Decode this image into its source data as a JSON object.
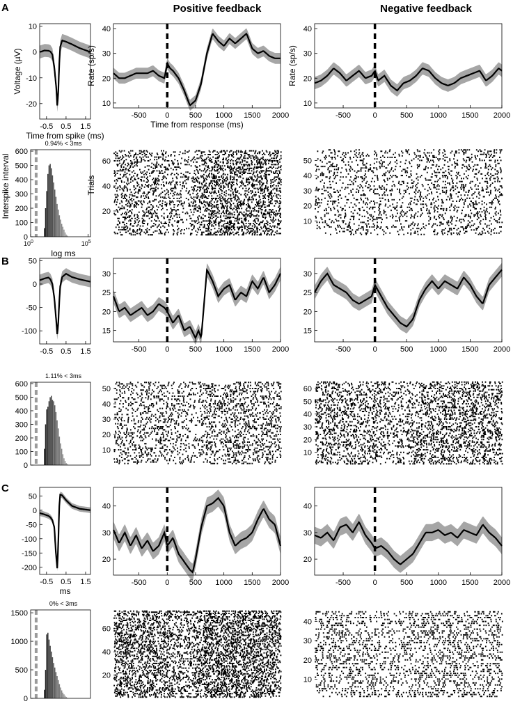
{
  "figure": {
    "column_headers": [
      "Positive feedback",
      "Negative feedback"
    ],
    "panel_labels": [
      "A",
      "B",
      "C"
    ]
  },
  "colors": {
    "band": "#a6a6a6",
    "line": "#000000",
    "isi_dash": "#9b9b9b"
  },
  "chart_data": [
    {
      "id": "A-waveform",
      "type": "line",
      "panel": "A",
      "xlabel": "Time from spike (ms)",
      "ylabel": "Voltage (µV)",
      "xlim": [
        -0.85,
        1.75
      ],
      "ylim": [
        -26,
        11
      ],
      "xticks": [
        -0.5,
        0.5,
        1.5
      ],
      "xticklabels": [
        "-0.5",
        "0.5",
        "1.5"
      ],
      "yticks": [
        -20,
        -10,
        0,
        10
      ],
      "yticklabels": [
        "-20",
        "-10",
        "0",
        "10"
      ],
      "x": [
        -0.85,
        -0.6,
        -0.4,
        -0.3,
        -0.2,
        -0.1,
        0.0,
        0.05,
        0.1,
        0.15,
        0.2,
        0.3,
        0.5,
        0.8,
        1.2,
        1.75
      ],
      "y": [
        0,
        0.6,
        0.5,
        0.2,
        -1,
        -6,
        -14,
        -21,
        -16,
        -5,
        2,
        4.5,
        4,
        3,
        1.5,
        0
      ],
      "band": 2.5
    },
    {
      "id": "A-pos-rate",
      "type": "line",
      "panel": "A",
      "xlabel": "Time from response (ms)",
      "ylabel": "Rate (sp/s)",
      "xlim": [
        -950,
        2000
      ],
      "ylim": [
        8,
        42
      ],
      "xticks": [
        -500,
        0,
        500,
        1000,
        1500,
        2000
      ],
      "xticklabels": [
        "-500",
        "0",
        "500",
        "1000",
        "1500",
        "2000"
      ],
      "yticks": [
        10,
        20,
        30,
        40
      ],
      "yticklabels": [
        "10",
        "20",
        "30",
        "40"
      ],
      "event_line_x": 0,
      "x": [
        -950,
        -850,
        -750,
        -650,
        -550,
        -450,
        -350,
        -250,
        -150,
        -50,
        0,
        50,
        100,
        200,
        300,
        400,
        500,
        600,
        700,
        800,
        900,
        1000,
        1100,
        1200,
        1300,
        1400,
        1500,
        1600,
        1700,
        1800,
        1900,
        2000
      ],
      "y": [
        22,
        20,
        20,
        21,
        22,
        22,
        22,
        23,
        21,
        20,
        26,
        24,
        23,
        20,
        15,
        9,
        11,
        18,
        30,
        38,
        35,
        33,
        36,
        34,
        36,
        38,
        32,
        30,
        31,
        29,
        28,
        28
      ],
      "band": 2.2
    },
    {
      "id": "A-neg-rate",
      "type": "line",
      "panel": "A",
      "xlabel": "",
      "ylabel": "Rate (sp/s)",
      "xlim": [
        -950,
        2000
      ],
      "ylim": [
        8,
        42
      ],
      "xticks": [
        -500,
        0,
        500,
        1000,
        1500,
        2000
      ],
      "xticklabels": [
        "-500",
        "0",
        "500",
        "1000",
        "1500",
        "2000"
      ],
      "yticks": [
        10,
        20,
        30,
        40
      ],
      "yticklabels": [
        "10",
        "20",
        "30",
        "40"
      ],
      "event_line_x": 0,
      "x": [
        -950,
        -850,
        -750,
        -650,
        -550,
        -450,
        -350,
        -250,
        -150,
        -50,
        0,
        50,
        150,
        250,
        350,
        450,
        550,
        650,
        750,
        850,
        950,
        1050,
        1150,
        1250,
        1350,
        1450,
        1550,
        1650,
        1750,
        1850,
        1950,
        2000
      ],
      "y": [
        18,
        19,
        21,
        24,
        22,
        19,
        21,
        23,
        20,
        21,
        23,
        19,
        21,
        17,
        15,
        18,
        19,
        21,
        24,
        23,
        20,
        18,
        17,
        18,
        20,
        21,
        22,
        23,
        19,
        21,
        24,
        23
      ],
      "band": 2.5
    },
    {
      "id": "A-isi",
      "type": "bar",
      "panel": "A",
      "title": "0.94% < 3ms",
      "xlabel": "log ms",
      "ylabel": "Interspike interval",
      "xlim": [
        0,
        5.2
      ],
      "ylim": [
        0,
        610
      ],
      "xscale": "log10",
      "yticks": [
        0,
        100,
        200,
        300,
        400,
        500,
        600
      ],
      "yticklabels": [
        "0",
        "100",
        "200",
        "300",
        "400",
        "500",
        "600"
      ],
      "xticks_pow": [
        0,
        5
      ],
      "bin_centers": [
        1.2,
        1.3,
        1.4,
        1.5,
        1.6,
        1.7,
        1.8,
        1.9,
        2.0,
        2.1,
        2.2,
        2.3,
        2.4,
        2.5,
        2.6,
        2.7,
        2.8,
        2.9,
        3.0,
        3.1,
        3.2
      ],
      "values": [
        60,
        200,
        320,
        440,
        500,
        510,
        480,
        430,
        380,
        330,
        280,
        230,
        190,
        150,
        120,
        90,
        70,
        50,
        30,
        15,
        8
      ],
      "dash_x": 0.48
    },
    {
      "id": "A-pos-raster",
      "type": "scatter",
      "panel": "A",
      "ylabel": "Trials",
      "xlim": [
        -950,
        2000
      ],
      "ylim": [
        0,
        70
      ],
      "yticks": [
        20,
        40,
        60
      ],
      "yticklabels": [
        "20",
        "40",
        "60"
      ],
      "trials": 68,
      "density_x": [
        -950,
        -500,
        0,
        300,
        600,
        1000,
        1500,
        2000
      ],
      "density": [
        0.22,
        0.22,
        0.2,
        0.12,
        0.3,
        0.34,
        0.33,
        0.3
      ]
    },
    {
      "id": "A-neg-raster",
      "type": "scatter",
      "panel": "A",
      "xlim": [
        -950,
        2000
      ],
      "ylim": [
        0,
        58
      ],
      "yticks": [
        10,
        20,
        30,
        40,
        50
      ],
      "yticklabels": [
        "10",
        "20",
        "30",
        "40",
        "50"
      ],
      "trials": 57,
      "density_x": [
        -950,
        0,
        500,
        1000,
        2000
      ],
      "density": [
        0.2,
        0.2,
        0.16,
        0.2,
        0.22
      ]
    },
    {
      "id": "B-waveform",
      "type": "line",
      "panel": "B",
      "xlim": [
        -0.85,
        1.75
      ],
      "ylim": [
        -128,
        55
      ],
      "xticks": [
        -0.5,
        0.5,
        1.5
      ],
      "xticklabels": [
        "-0.5",
        "0.5",
        "1.5"
      ],
      "yticks": [
        -100,
        -50,
        0,
        50
      ],
      "yticklabels": [
        "-100",
        "-50",
        "0",
        "50"
      ],
      "x": [
        -0.85,
        -0.6,
        -0.4,
        -0.3,
        -0.2,
        -0.1,
        0.0,
        0.05,
        0.1,
        0.15,
        0.2,
        0.3,
        0.5,
        0.8,
        1.2,
        1.75
      ],
      "y": [
        8,
        12,
        14,
        10,
        0,
        -30,
        -80,
        -108,
        -85,
        -40,
        -5,
        15,
        22,
        15,
        10,
        5
      ],
      "band": 12
    },
    {
      "id": "B-pos-rate",
      "type": "line",
      "panel": "B",
      "xlim": [
        -950,
        2000
      ],
      "ylim": [
        12,
        34
      ],
      "xticks": [
        -500,
        0,
        500,
        1000,
        1500,
        2000
      ],
      "xticklabels": [
        "-500",
        "0",
        "500",
        "1000",
        "1500",
        "2000"
      ],
      "yticks": [
        15,
        20,
        25,
        30
      ],
      "yticklabels": [
        "15",
        "20",
        "25",
        "30"
      ],
      "event_line_x": 0,
      "x": [
        -950,
        -850,
        -750,
        -650,
        -550,
        -450,
        -350,
        -250,
        -150,
        -50,
        0,
        100,
        200,
        300,
        400,
        500,
        550,
        600,
        700,
        800,
        900,
        1000,
        1100,
        1200,
        1300,
        1400,
        1500,
        1600,
        1700,
        1800,
        1900,
        2000
      ],
      "y": [
        24,
        20,
        21,
        19,
        20,
        21,
        19,
        20,
        22,
        21,
        20,
        17,
        19,
        15,
        16,
        13,
        15,
        13,
        31,
        28,
        24,
        26,
        27,
        23,
        25,
        24,
        28,
        26,
        29,
        25,
        27,
        30
      ],
      "band": 1.8
    },
    {
      "id": "B-neg-rate",
      "type": "line",
      "panel": "B",
      "xlim": [
        -950,
        2000
      ],
      "ylim": [
        12,
        34
      ],
      "xticks": [
        -500,
        0,
        500,
        1000,
        1500,
        2000
      ],
      "xticklabels": [
        "-500",
        "0",
        "500",
        "1000",
        "1500",
        "2000"
      ],
      "yticks": [
        15,
        20,
        25,
        30
      ],
      "yticklabels": [
        "15",
        "20",
        "25",
        "30"
      ],
      "event_line_x": 0,
      "x": [
        -950,
        -850,
        -750,
        -650,
        -550,
        -450,
        -350,
        -250,
        -150,
        -50,
        0,
        100,
        200,
        300,
        400,
        500,
        600,
        700,
        800,
        900,
        1000,
        1100,
        1200,
        1300,
        1400,
        1500,
        1600,
        1700,
        1800,
        1900,
        2000
      ],
      "y": [
        25,
        28,
        30,
        27,
        26,
        25,
        23,
        22,
        23,
        24,
        27,
        24,
        21,
        19,
        17,
        16,
        18,
        23,
        26,
        28,
        26,
        28,
        27,
        26,
        29,
        27,
        24,
        22,
        27,
        29,
        31
      ],
      "band": 1.8
    },
    {
      "id": "B-isi",
      "type": "bar",
      "panel": "B",
      "title": "1.11% < 3ms",
      "xlim": [
        0,
        5.2
      ],
      "ylim": [
        0,
        610
      ],
      "xscale": "log10",
      "yticks": [
        0,
        100,
        200,
        300,
        400,
        500,
        600
      ],
      "yticklabels": [
        "0",
        "100",
        "200",
        "300",
        "400",
        "500",
        "600"
      ],
      "bin_centers": [
        1.2,
        1.3,
        1.4,
        1.5,
        1.6,
        1.7,
        1.8,
        1.9,
        2.0,
        2.1,
        2.2,
        2.3,
        2.4,
        2.5,
        2.6,
        2.7,
        2.8,
        2.9,
        3.0,
        3.1,
        3.2
      ],
      "values": [
        120,
        300,
        410,
        430,
        470,
        500,
        510,
        480,
        470,
        440,
        390,
        330,
        270,
        210,
        160,
        120,
        80,
        50,
        30,
        15,
        8
      ],
      "dash_x": 0.48
    },
    {
      "id": "B-pos-raster",
      "type": "scatter",
      "panel": "B",
      "xlim": [
        -950,
        2000
      ],
      "ylim": [
        0,
        55
      ],
      "yticks": [
        10,
        20,
        30,
        40,
        50
      ],
      "yticklabels": [
        "10",
        "20",
        "30",
        "40",
        "50"
      ],
      "trials": 54,
      "density_x": [
        -950,
        0,
        500,
        700,
        1000,
        2000
      ],
      "density": [
        0.22,
        0.22,
        0.14,
        0.26,
        0.26,
        0.28
      ]
    },
    {
      "id": "B-neg-raster",
      "type": "scatter",
      "panel": "B",
      "xlim": [
        -950,
        2000
      ],
      "ylim": [
        0,
        66
      ],
      "yticks": [
        10,
        20,
        30,
        40,
        50,
        60
      ],
      "yticklabels": [
        "10",
        "20",
        "30",
        "40",
        "50",
        "60"
      ],
      "trials": 65,
      "density_x": [
        -950,
        0,
        400,
        700,
        1000,
        2000
      ],
      "density": [
        0.3,
        0.26,
        0.18,
        0.28,
        0.3,
        0.3
      ]
    },
    {
      "id": "C-waveform",
      "type": "line",
      "panel": "C",
      "xlabel": "ms",
      "xlim": [
        -0.85,
        1.75
      ],
      "ylim": [
        -225,
        80
      ],
      "xticks": [
        -0.5,
        0.5,
        1.5
      ],
      "xticklabels": [
        "-0.5",
        "0.5",
        "1.5"
      ],
      "yticks": [
        -200,
        -150,
        -100,
        -50,
        0,
        50
      ],
      "yticklabels": [
        "-200",
        "-150",
        "-100",
        "-50",
        "0",
        "50"
      ],
      "x": [
        -0.85,
        -0.6,
        -0.4,
        -0.3,
        -0.2,
        -0.1,
        -0.02,
        0.05,
        0.1,
        0.15,
        0.2,
        0.3,
        0.5,
        0.8,
        1.2,
        1.75
      ],
      "y": [
        -10,
        -15,
        -20,
        -25,
        -35,
        -60,
        -150,
        -205,
        -120,
        10,
        55,
        52,
        35,
        15,
        5,
        0
      ],
      "band": 10
    },
    {
      "id": "C-pos-rate",
      "type": "line",
      "panel": "C",
      "xlim": [
        -950,
        2000
      ],
      "ylim": [
        14,
        47
      ],
      "xticks": [
        -500,
        0,
        500,
        1000,
        1500,
        2000
      ],
      "xticklabels": [
        "-500",
        "0",
        "500",
        "1000",
        "1500",
        "2000"
      ],
      "yticks": [
        20,
        30,
        40
      ],
      "yticklabels": [
        "20",
        "30",
        "40"
      ],
      "event_line_x": 0,
      "x": [
        -950,
        -850,
        -750,
        -650,
        -550,
        -450,
        -350,
        -250,
        -150,
        -50,
        0,
        100,
        200,
        300,
        400,
        450,
        500,
        600,
        700,
        800,
        900,
        1000,
        1100,
        1200,
        1300,
        1400,
        1500,
        1600,
        1700,
        1800,
        1900,
        2000
      ],
      "y": [
        31,
        26,
        30,
        25,
        29,
        24,
        27,
        23,
        25,
        30,
        25,
        28,
        22,
        19,
        16,
        15,
        20,
        32,
        40,
        41,
        43,
        40,
        30,
        25,
        27,
        28,
        30,
        35,
        39,
        35,
        33,
        25
      ],
      "band": 3.2
    },
    {
      "id": "C-neg-rate",
      "type": "line",
      "panel": "C",
      "xlim": [
        -950,
        2000
      ],
      "ylim": [
        14,
        47
      ],
      "xticks": [
        -500,
        0,
        500,
        1000,
        1500,
        2000
      ],
      "xticklabels": [
        "-500",
        "0",
        "500",
        "1000",
        "1500",
        "2000"
      ],
      "yticks": [
        20,
        30,
        40
      ],
      "yticklabels": [
        "20",
        "30",
        "40"
      ],
      "event_line_x": 0,
      "x": [
        -950,
        -850,
        -750,
        -650,
        -550,
        -450,
        -350,
        -250,
        -150,
        -50,
        0,
        100,
        200,
        300,
        400,
        500,
        600,
        700,
        800,
        900,
        1000,
        1100,
        1200,
        1300,
        1400,
        1500,
        1600,
        1700,
        1800,
        1900,
        2000
      ],
      "y": [
        29,
        28,
        30,
        27,
        32,
        33,
        30,
        34,
        29,
        26,
        24,
        25,
        23,
        20,
        18,
        20,
        22,
        26,
        30,
        30,
        31,
        29,
        30,
        28,
        31,
        30,
        29,
        33,
        30,
        28,
        25
      ],
      "band": 3.2
    },
    {
      "id": "C-isi",
      "type": "bar",
      "panel": "C",
      "title": "0% < 3ms",
      "xlim": [
        0,
        5.2
      ],
      "ylim": [
        0,
        1550
      ],
      "xscale": "log10",
      "yticks": [
        0,
        500,
        1000,
        1500
      ],
      "yticklabels": [
        "0",
        "500",
        "1000",
        "1500"
      ],
      "bin_centers": [
        1.2,
        1.3,
        1.4,
        1.5,
        1.6,
        1.7,
        1.8,
        1.9,
        2.0,
        2.1,
        2.2,
        2.3,
        2.4,
        2.5,
        2.6,
        2.7,
        2.8,
        2.9,
        3.0,
        3.1,
        3.2
      ],
      "values": [
        150,
        500,
        1120,
        1150,
        1030,
        920,
        820,
        720,
        620,
        540,
        460,
        390,
        320,
        250,
        190,
        140,
        100,
        70,
        45,
        25,
        10
      ],
      "dash_x": 0.48
    },
    {
      "id": "C-pos-raster",
      "type": "scatter",
      "panel": "C",
      "xlim": [
        -950,
        2000
      ],
      "ylim": [
        0,
        76
      ],
      "yticks": [
        20,
        40,
        60
      ],
      "yticklabels": [
        "20",
        "40",
        "60"
      ],
      "trials": 75,
      "density_x": [
        -950,
        0,
        400,
        700,
        1000,
        1500,
        2000
      ],
      "density": [
        0.34,
        0.3,
        0.22,
        0.4,
        0.4,
        0.36,
        0.32
      ]
    },
    {
      "id": "C-neg-raster",
      "type": "scatter",
      "panel": "C",
      "xlim": [
        -950,
        2000
      ],
      "ylim": [
        0,
        46
      ],
      "yticks": [
        10,
        20,
        30,
        40
      ],
      "yticklabels": [
        "10",
        "20",
        "30",
        "40"
      ],
      "trials": 45,
      "density_x": [
        -950,
        0,
        400,
        800,
        2000
      ],
      "density": [
        0.32,
        0.28,
        0.22,
        0.32,
        0.32
      ]
    }
  ]
}
